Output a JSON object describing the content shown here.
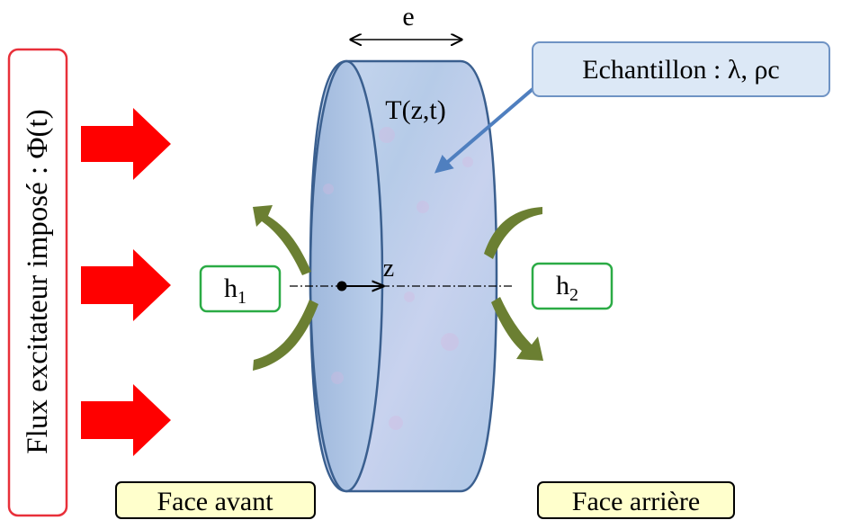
{
  "flux_label": "Flux excitateur imposé : Φ(t)",
  "thickness_label": "e",
  "temperature_label": "T(z,t)",
  "sample_label": "Echantillon : λ, ρc",
  "axis_label": "z",
  "h1": {
    "symbol": "h",
    "subscript": "1"
  },
  "h2": {
    "symbol": "h",
    "subscript": "2"
  },
  "front_face_label": "Face avant",
  "rear_face_label": "Face arrière",
  "colors": {
    "flux_border": "#e8303a",
    "flux_arrow": "#ff0000",
    "convection_arrow": "#6b7f32",
    "h_box_border": "#2bab45",
    "face_box_fill": "#ffffcc",
    "callout_fill": "#dce8f6",
    "callout_border": "#6f93c4",
    "sample_fill": "#b9cdea",
    "sample_edge": "#3a5f8f"
  }
}
